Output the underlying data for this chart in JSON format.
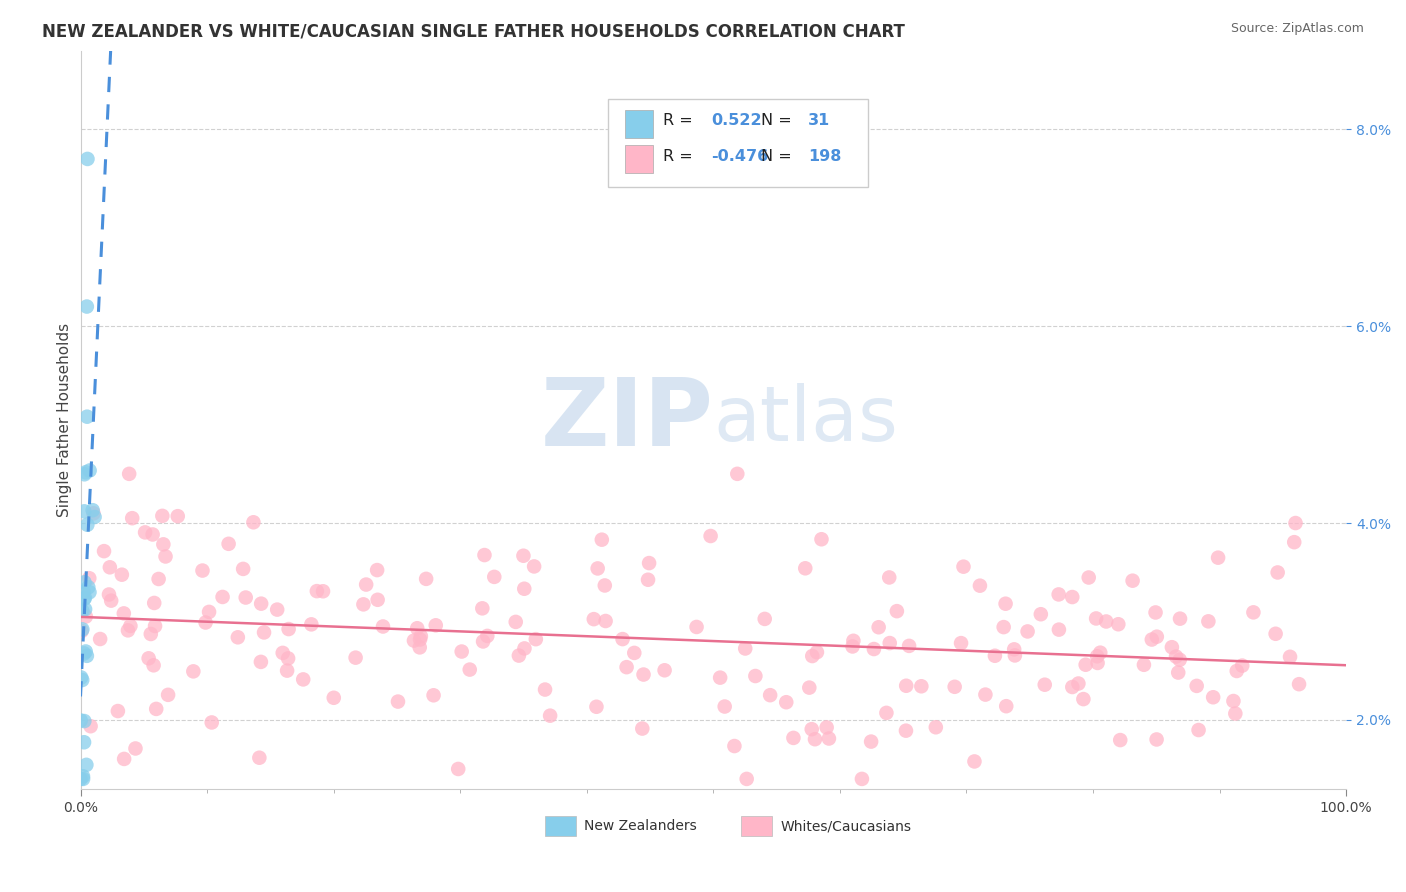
{
  "title": "NEW ZEALANDER VS WHITE/CAUCASIAN SINGLE FATHER HOUSEHOLDS CORRELATION CHART",
  "source": "Source: ZipAtlas.com",
  "ylabel": "Single Father Households",
  "xlim": [
    0.0,
    1.0
  ],
  "ylim": [
    0.013,
    0.088
  ],
  "yticks": [
    0.02,
    0.04,
    0.06,
    0.08
  ],
  "ytick_labels": [
    "2.0%",
    "4.0%",
    "6.0%",
    "8.0%"
  ],
  "xticks": [
    0.0,
    1.0
  ],
  "xtick_labels": [
    "0.0%",
    "100.0%"
  ],
  "nz_color": "#87CEEB",
  "white_color": "#FFB6C8",
  "nz_trend_color": "#4a8fdb",
  "white_trend_color": "#e87090",
  "nz_R": 0.522,
  "nz_N": 31,
  "white_R": -0.476,
  "white_N": 198,
  "watermark_zip": "ZIP",
  "watermark_atlas": "atlas",
  "background_color": "#ffffff",
  "grid_color": "#cccccc",
  "title_fontsize": 12,
  "axis_label_fontsize": 11,
  "tick_fontsize": 10,
  "legend_label_nz": "New Zealanders",
  "legend_label_white": "Whites/Caucasians"
}
